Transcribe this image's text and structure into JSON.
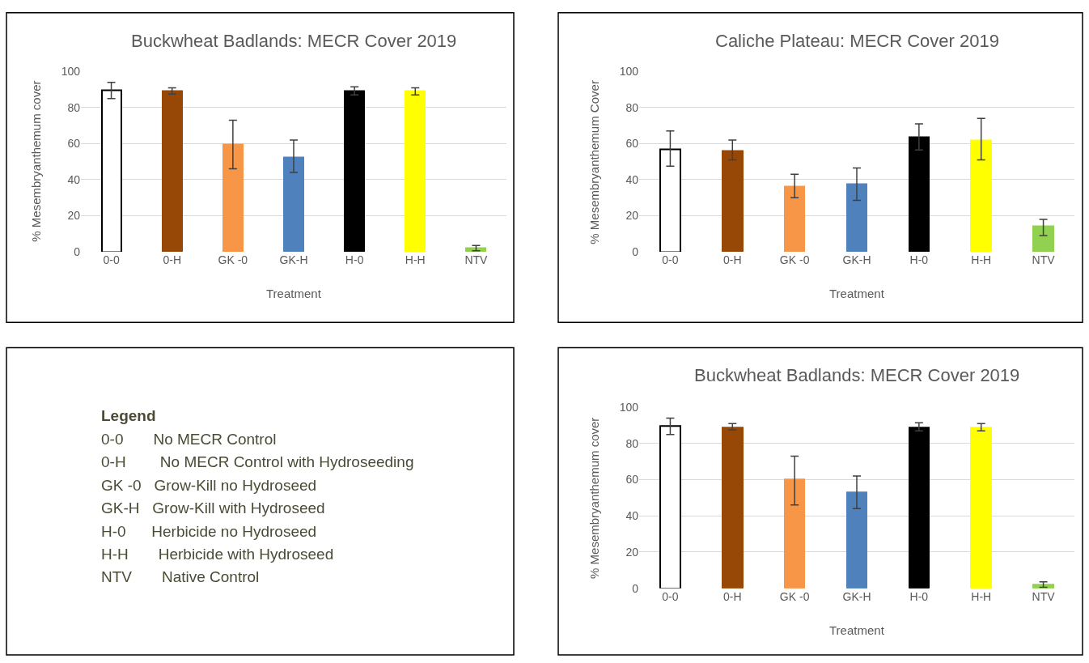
{
  "chart_data": [
    {
      "type": "bar",
      "title": "Buckwheat Badlands: MECR Cover 2019",
      "xlabel": "Treatment",
      "ylabel": "% Mesembryanthemum cover",
      "categories": [
        "0-0",
        "0-H",
        "GK -0",
        "GK-H",
        "H-0",
        "H-H",
        "NTV"
      ],
      "values": [
        89.5,
        89,
        59.5,
        52.5,
        89,
        89,
        2
      ],
      "errors": [
        [
          85,
          94
        ],
        [
          87.5,
          91
        ],
        [
          46,
          73
        ],
        [
          44,
          62
        ],
        [
          87,
          91.5
        ],
        [
          87,
          91
        ],
        [
          0.5,
          3.5
        ]
      ],
      "colors": [
        "#ffffff",
        "#974706",
        "#f79646",
        "#4f81bd",
        "#000000",
        "#ffff00",
        "#92d050"
      ],
      "ylim": [
        0,
        100
      ],
      "yticks": [
        0,
        20,
        40,
        60,
        80,
        100
      ],
      "grid": "y",
      "legend": false
    },
    {
      "type": "bar",
      "title": "Caliche Plateau: MECR Cover 2019",
      "xlabel": "Treatment",
      "ylabel": "% Mesembryanthemum Cover",
      "categories": [
        "0-0",
        "0-H",
        "GK -0",
        "GK-H",
        "H-0",
        "H-H",
        "NTV"
      ],
      "values": [
        57,
        56,
        36,
        37.5,
        63.5,
        62,
        14
      ],
      "errors": [
        [
          47.5,
          67
        ],
        [
          51,
          62
        ],
        [
          30,
          43
        ],
        [
          28.5,
          46.5
        ],
        [
          56.5,
          71
        ],
        [
          51,
          74
        ],
        [
          9,
          18
        ]
      ],
      "colors": [
        "#ffffff",
        "#974706",
        "#f79646",
        "#4f81bd",
        "#000000",
        "#ffff00",
        "#92d050"
      ],
      "ylim": [
        0,
        100
      ],
      "yticks": [
        0,
        20,
        40,
        60,
        80,
        100
      ],
      "grid": "y",
      "legend": false
    },
    {
      "type": "other",
      "title": "Legend",
      "annotations": [
        "0-0       No MECR Control",
        "0-H        No MECR Control with Hydroseeding",
        "GK -0   Grow-Kill no Hydroseed",
        "GK-H   Grow-Kill with Hydroseed",
        "H-0      Herbicide no Hydroseed",
        "H-H       Herbicide with Hydroseed",
        "NTV       Native Control"
      ]
    },
    {
      "type": "bar",
      "title": "Buckwheat Badlands: MECR Cover 2019",
      "xlabel": "Treatment",
      "ylabel": "% Mesembryanthemum cover",
      "categories": [
        "0-0",
        "0-H",
        "GK -0",
        "GK-H",
        "H-0",
        "H-H",
        "NTV"
      ],
      "values": [
        89.5,
        89,
        60,
        53,
        89,
        89,
        2
      ],
      "errors": [
        [
          85,
          94
        ],
        [
          87.5,
          91
        ],
        [
          46,
          73
        ],
        [
          44,
          62
        ],
        [
          87,
          91.5
        ],
        [
          87,
          91
        ],
        [
          0.5,
          3.5
        ]
      ],
      "colors": [
        "#ffffff",
        "#974706",
        "#f79646",
        "#4f81bd",
        "#000000",
        "#ffff00",
        "#92d050"
      ],
      "ylim": [
        0,
        100
      ],
      "yticks": [
        0,
        20,
        40,
        60,
        80,
        100
      ],
      "grid": "y",
      "legend": false
    }
  ]
}
